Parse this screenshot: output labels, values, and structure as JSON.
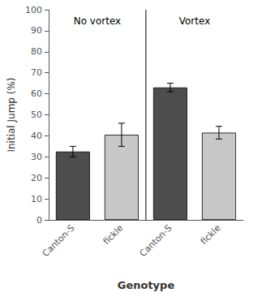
{
  "chart_data": {
    "type": "bar",
    "categories": [
      "Canton-S",
      "fickle",
      "Canton-S",
      "fickle"
    ],
    "values": [
      32.5,
      40.5,
      63.0,
      41.5
    ],
    "errors": [
      2.5,
      5.5,
      2.0,
      3.0
    ],
    "colors": [
      "#4d4d4d",
      "#c8c8c8",
      "#4d4d4d",
      "#c8c8c8"
    ],
    "xlabel": "Genotype",
    "ylabel": "Initial Jump (%)",
    "annotations": [
      "No vortex",
      "Vortex"
    ],
    "ylim": [
      0,
      100
    ],
    "yticks": [
      0,
      10,
      20,
      30,
      40,
      50,
      60,
      70,
      80,
      90,
      100
    ],
    "grid": false
  }
}
